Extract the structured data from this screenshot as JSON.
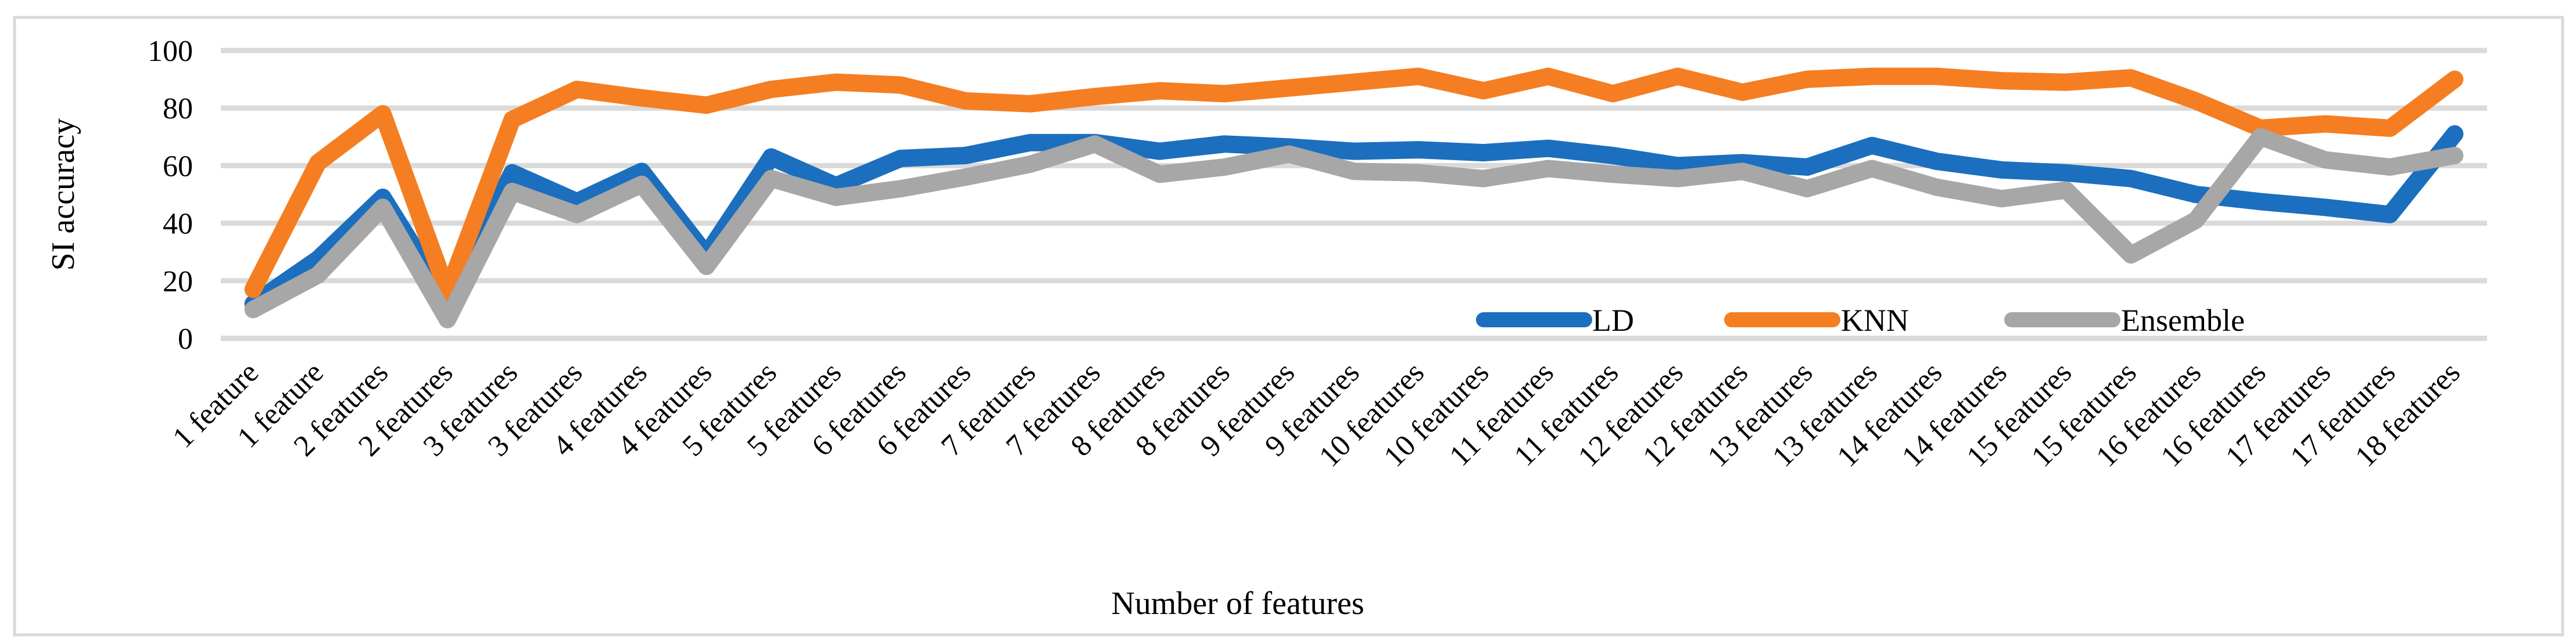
{
  "chart_data": {
    "type": "line",
    "title": "",
    "xlabel": "Number of features",
    "ylabel": "SI accuracy",
    "ylim": [
      0,
      100
    ],
    "yticks": [
      0,
      20,
      40,
      60,
      80,
      100
    ],
    "grid": true,
    "grid_color": "#DADADA",
    "frame_color": "#D9D9D9",
    "background_color": "#FFFFFF",
    "legend_position": "inside-bottom-center-right",
    "categories": [
      "1 feature",
      "1 feature",
      "2 features",
      "2 features",
      "3 features",
      "3 features",
      "4 features",
      "4 features",
      "5 features",
      "5 features",
      "6 features",
      "6 features",
      "7 features",
      "7 features",
      "8 features",
      "8 features",
      "9 features",
      "9 features",
      "10 features",
      "10 features",
      "11 features",
      "11 features",
      "12 features",
      "12 features",
      "13 features",
      "13 features",
      "14 features",
      "14 features",
      "15 features",
      "15 features",
      "16 features",
      "16 features",
      "17 features",
      "17 features",
      "18 features"
    ],
    "series": [
      {
        "name": "LD",
        "color": "#1B6FBE",
        "values": [
          12,
          27.5,
          49,
          13,
          57.5,
          47.5,
          58,
          29,
          63,
          53,
          62.5,
          63.5,
          68,
          68,
          65,
          67.5,
          66.5,
          65,
          65.5,
          64.5,
          66,
          63.5,
          60,
          61,
          59.5,
          67,
          61.5,
          58.5,
          57.5,
          55.5,
          50,
          47.5,
          45.5,
          43,
          71
        ]
      },
      {
        "name": "KNN",
        "color": "#F57E22",
        "values": [
          17,
          61,
          78,
          16,
          76,
          86.5,
          83.5,
          81,
          86.5,
          89,
          88,
          82.5,
          81.5,
          84,
          86,
          85,
          87,
          89,
          91,
          86,
          91,
          85,
          91,
          85.5,
          90,
          91,
          91,
          89.5,
          89,
          90.5,
          82.5,
          73,
          74.5,
          73,
          90
        ]
      },
      {
        "name": "Ensemble",
        "color": "#A7A7A7",
        "values": [
          10,
          22,
          45.5,
          6.5,
          51,
          43,
          53.5,
          25,
          55.5,
          49,
          52,
          56,
          60.5,
          67.5,
          57,
          59.5,
          64,
          58,
          57.5,
          55.5,
          59,
          57,
          55.5,
          58,
          52,
          59,
          52.5,
          48.5,
          51.5,
          29,
          41,
          70,
          62,
          59.5,
          63.5
        ]
      }
    ]
  }
}
